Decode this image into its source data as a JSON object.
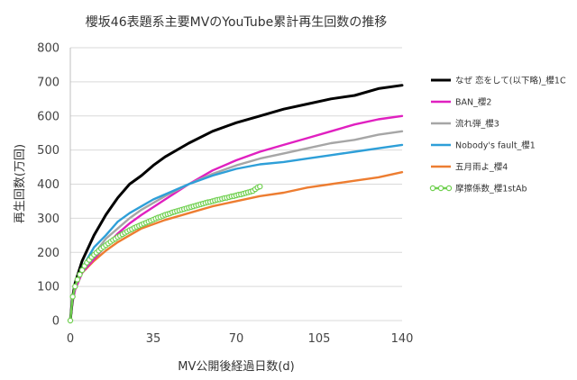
{
  "chart_data": {
    "type": "line",
    "title": "櫻坂46表題系主要MVのYouTube累計再生回数の推移",
    "xlabel": "MV公開後経過日数(d)",
    "ylabel": "再生回数(万回)",
    "xlim": [
      0,
      140
    ],
    "ylim": [
      0,
      800
    ],
    "xticks": [
      "0",
      "35",
      "70",
      "105",
      "140"
    ],
    "yticks": [
      "0",
      "100",
      "200",
      "300",
      "400",
      "500",
      "600",
      "700",
      "800"
    ],
    "grid": "horizontal",
    "legend_position": "right",
    "series": [
      {
        "name": "なぜ 恋をして(以下略)_櫻1C",
        "color": "#000000",
        "marker": "none",
        "x": [
          0,
          1,
          2,
          5,
          10,
          15,
          20,
          25,
          30,
          35,
          40,
          50,
          60,
          70,
          80,
          90,
          100,
          110,
          120,
          130,
          140
        ],
        "y": [
          0,
          70,
          110,
          175,
          250,
          310,
          360,
          400,
          425,
          455,
          480,
          520,
          555,
          580,
          600,
          620,
          635,
          650,
          660,
          680,
          690
        ]
      },
      {
        "name": "BAN_櫻2",
        "color": "#e020c0",
        "marker": "none",
        "x": [
          0,
          1,
          2,
          5,
          10,
          15,
          20,
          25,
          30,
          40,
          50,
          60,
          70,
          80,
          90,
          100,
          110,
          120,
          130,
          140
        ],
        "y": [
          0,
          55,
          90,
          140,
          180,
          220,
          255,
          285,
          310,
          355,
          400,
          440,
          470,
          495,
          515,
          535,
          555,
          575,
          590,
          600
        ]
      },
      {
        "name": "流れ弾_櫻3",
        "color": "#a6a6a6",
        "marker": "none",
        "x": [
          0,
          1,
          2,
          5,
          10,
          15,
          20,
          25,
          30,
          40,
          50,
          60,
          70,
          80,
          90,
          100,
          110,
          120,
          130,
          140
        ],
        "y": [
          0,
          60,
          100,
          150,
          195,
          240,
          270,
          300,
          325,
          365,
          400,
          430,
          455,
          475,
          490,
          505,
          520,
          530,
          545,
          555
        ]
      },
      {
        "name": "Nobody's fault_櫻1",
        "color": "#2e9fd8",
        "marker": "none",
        "x": [
          0,
          1,
          2,
          5,
          10,
          15,
          20,
          25,
          30,
          35,
          40,
          50,
          60,
          70,
          80,
          90,
          100,
          110,
          120,
          130,
          140
        ],
        "y": [
          0,
          65,
          105,
          155,
          215,
          250,
          290,
          315,
          335,
          355,
          370,
          400,
          425,
          445,
          458,
          465,
          475,
          485,
          495,
          505,
          515
        ]
      },
      {
        "name": "五月雨よ_櫻4",
        "color": "#ed7d31",
        "marker": "none",
        "x": [
          0,
          1,
          2,
          5,
          10,
          15,
          20,
          25,
          30,
          40,
          50,
          60,
          70,
          80,
          90,
          100,
          110,
          120,
          130,
          140
        ],
        "y": [
          0,
          60,
          95,
          140,
          175,
          205,
          230,
          250,
          270,
          295,
          315,
          335,
          350,
          365,
          375,
          390,
          400,
          410,
          420,
          435
        ]
      },
      {
        "name": "摩擦係数_櫻1stAb",
        "color": "#70d050",
        "marker": "circle",
        "x": [
          0,
          1,
          2,
          3,
          4,
          5,
          6,
          7,
          8,
          9,
          10,
          11,
          12,
          13,
          14,
          15,
          16,
          17,
          18,
          19,
          20,
          21,
          22,
          23,
          24,
          25,
          26,
          27,
          28,
          29,
          30,
          31,
          32,
          33,
          34,
          35,
          36,
          37,
          38,
          39,
          40,
          41,
          42,
          43,
          44,
          45,
          46,
          47,
          48,
          49,
          50,
          51,
          52,
          53,
          54,
          55,
          56,
          57,
          58,
          59,
          60,
          61,
          62,
          63,
          64,
          65,
          66,
          67,
          68,
          69,
          70,
          71,
          72,
          73,
          74,
          75,
          76,
          77,
          78,
          79,
          80
        ],
        "y": [
          0,
          70,
          100,
          120,
          135,
          148,
          160,
          170,
          178,
          186,
          193,
          199,
          205,
          211,
          216,
          221,
          226,
          231,
          236,
          240,
          245,
          249,
          253,
          257,
          261,
          265,
          268,
          272,
          275,
          278,
          281,
          284,
          287,
          290,
          293,
          296,
          299,
          302,
          304,
          307,
          310,
          312,
          314,
          317,
          319,
          321,
          323,
          325,
          327,
          329,
          331,
          333,
          335,
          337,
          339,
          341,
          343,
          345,
          347,
          348,
          350,
          352,
          354,
          355,
          357,
          359,
          360,
          362,
          364,
          365,
          367,
          369,
          370,
          372,
          374,
          376,
          378,
          380,
          385,
          390,
          393
        ]
      }
    ]
  }
}
